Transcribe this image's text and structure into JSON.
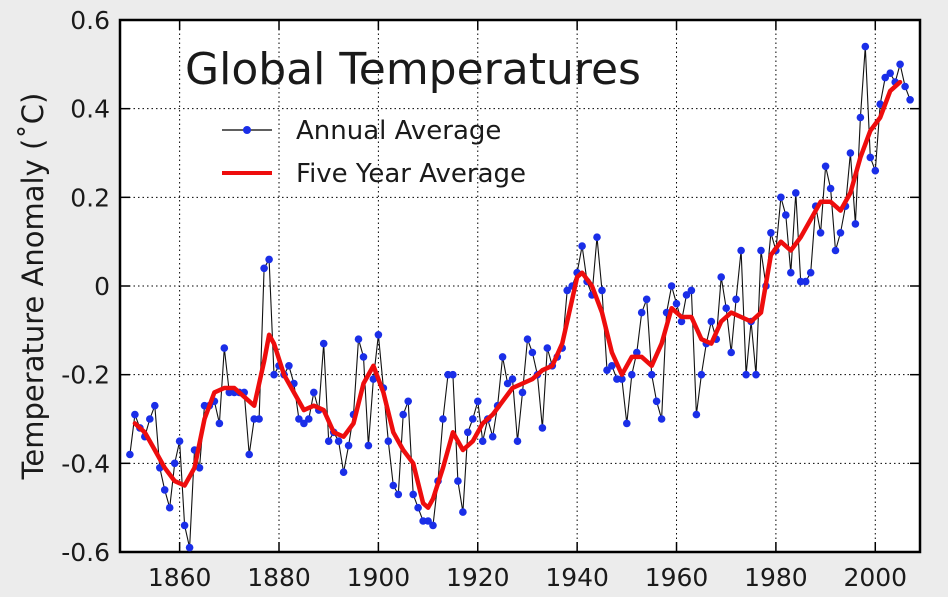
{
  "chart_data": {
    "type": "line",
    "title": "Global Temperatures",
    "xlabel": "",
    "ylabel": "Temperature Anomaly (˚C)",
    "xlim": [
      1848,
      2009
    ],
    "ylim": [
      -0.6,
      0.6
    ],
    "xticks": [
      "1860",
      "1880",
      "1900",
      "1920",
      "1940",
      "1960",
      "1980",
      "2000"
    ],
    "yticks": [
      "0.6",
      "0.4",
      "0.2",
      "0",
      "-0.2",
      "-0.4",
      "-0.6"
    ],
    "grid": true,
    "legend_position": "top-left",
    "series": [
      {
        "name": "Annual Average",
        "color": "#1a2ee8",
        "x": [
          1850,
          1851,
          1852,
          1853,
          1854,
          1855,
          1856,
          1857,
          1858,
          1859,
          1860,
          1861,
          1862,
          1863,
          1864,
          1865,
          1866,
          1867,
          1868,
          1869,
          1870,
          1871,
          1872,
          1873,
          1874,
          1875,
          1876,
          1877,
          1878,
          1879,
          1880,
          1881,
          1882,
          1883,
          1884,
          1885,
          1886,
          1887,
          1888,
          1889,
          1890,
          1891,
          1892,
          1893,
          1894,
          1895,
          1896,
          1897,
          1898,
          1899,
          1900,
          1901,
          1902,
          1903,
          1904,
          1905,
          1906,
          1907,
          1908,
          1909,
          1910,
          1911,
          1912,
          1913,
          1914,
          1915,
          1916,
          1917,
          1918,
          1919,
          1920,
          1921,
          1922,
          1923,
          1924,
          1925,
          1926,
          1927,
          1928,
          1929,
          1930,
          1931,
          1932,
          1933,
          1934,
          1935,
          1936,
          1937,
          1938,
          1939,
          1940,
          1941,
          1942,
          1943,
          1944,
          1945,
          1946,
          1947,
          1948,
          1949,
          1950,
          1951,
          1952,
          1953,
          1954,
          1955,
          1956,
          1957,
          1958,
          1959,
          1960,
          1961,
          1962,
          1963,
          1964,
          1965,
          1966,
          1967,
          1968,
          1969,
          1970,
          1971,
          1972,
          1973,
          1974,
          1975,
          1976,
          1977,
          1978,
          1979,
          1980,
          1981,
          1982,
          1983,
          1984,
          1985,
          1986,
          1987,
          1988,
          1989,
          1990,
          1991,
          1992,
          1993,
          1994,
          1995,
          1996,
          1997,
          1998,
          1999,
          2000,
          2001,
          2002,
          2003,
          2004,
          2005,
          2006,
          2007
        ],
        "values": [
          -0.38,
          -0.29,
          -0.32,
          -0.34,
          -0.3,
          -0.27,
          -0.41,
          -0.46,
          -0.5,
          -0.4,
          -0.35,
          -0.54,
          -0.59,
          -0.37,
          -0.41,
          -0.27,
          -0.27,
          -0.26,
          -0.31,
          -0.14,
          -0.24,
          -0.24,
          -0.24,
          -0.24,
          -0.38,
          -0.3,
          -0.3,
          0.04,
          0.06,
          -0.2,
          -0.18,
          -0.2,
          -0.18,
          -0.22,
          -0.3,
          -0.31,
          -0.3,
          -0.24,
          -0.28,
          -0.13,
          -0.35,
          -0.33,
          -0.35,
          -0.42,
          -0.36,
          -0.29,
          -0.12,
          -0.16,
          -0.36,
          -0.21,
          -0.11,
          -0.23,
          -0.35,
          -0.45,
          -0.47,
          -0.29,
          -0.26,
          -0.47,
          -0.5,
          -0.53,
          -0.53,
          -0.54,
          -0.44,
          -0.3,
          -0.2,
          -0.2,
          -0.44,
          -0.51,
          -0.33,
          -0.3,
          -0.26,
          -0.35,
          -0.3,
          -0.34,
          -0.27,
          -0.16,
          -0.22,
          -0.21,
          -0.35,
          -0.24,
          -0.12,
          -0.15,
          -0.2,
          -0.32,
          -0.14,
          -0.18,
          -0.16,
          -0.14,
          -0.01,
          0.0,
          0.03,
          0.09,
          0.01,
          -0.02,
          0.11,
          -0.01,
          -0.19,
          -0.18,
          -0.21,
          -0.21,
          -0.31,
          -0.2,
          -0.15,
          -0.06,
          -0.03,
          -0.2,
          -0.26,
          -0.3,
          -0.06,
          0.0,
          -0.04,
          -0.08,
          -0.02,
          -0.01,
          -0.29,
          -0.2,
          -0.13,
          -0.08,
          -0.12,
          0.02,
          -0.05,
          -0.15,
          -0.03,
          0.08,
          -0.2,
          -0.08,
          -0.2,
          0.08,
          0.0,
          0.12,
          0.08,
          0.2,
          0.16,
          0.03,
          0.21,
          0.01,
          0.01,
          0.03,
          0.18,
          0.12,
          0.27,
          0.22,
          0.08,
          0.12,
          0.18,
          0.3,
          0.14,
          0.38,
          0.54,
          0.29,
          0.26,
          0.41,
          0.47,
          0.48,
          0.46,
          0.5,
          0.45,
          0.42
        ]
      },
      {
        "name": "Five Year Average",
        "color": "#ee0d0d",
        "x": [
          1851,
          1853,
          1855,
          1857,
          1859,
          1861,
          1863,
          1865,
          1867,
          1869,
          1871,
          1873,
          1875,
          1877,
          1878,
          1879,
          1881,
          1883,
          1885,
          1887,
          1889,
          1891,
          1893,
          1895,
          1897,
          1899,
          1901,
          1903,
          1905,
          1907,
          1909,
          1910,
          1911,
          1913,
          1915,
          1917,
          1919,
          1921,
          1923,
          1925,
          1927,
          1929,
          1931,
          1933,
          1935,
          1937,
          1939,
          1940,
          1941,
          1943,
          1945,
          1947,
          1949,
          1951,
          1953,
          1955,
          1957,
          1959,
          1961,
          1963,
          1965,
          1967,
          1969,
          1971,
          1973,
          1975,
          1977,
          1979,
          1981,
          1983,
          1985,
          1987,
          1989,
          1991,
          1993,
          1995,
          1997,
          1999,
          2001,
          2003,
          2005
        ],
        "values": [
          -0.31,
          -0.33,
          -0.37,
          -0.41,
          -0.44,
          -0.45,
          -0.41,
          -0.3,
          -0.24,
          -0.23,
          -0.23,
          -0.25,
          -0.27,
          -0.17,
          -0.11,
          -0.13,
          -0.2,
          -0.24,
          -0.28,
          -0.27,
          -0.28,
          -0.33,
          -0.34,
          -0.31,
          -0.22,
          -0.18,
          -0.24,
          -0.33,
          -0.37,
          -0.4,
          -0.49,
          -0.5,
          -0.48,
          -0.41,
          -0.33,
          -0.37,
          -0.35,
          -0.31,
          -0.29,
          -0.26,
          -0.23,
          -0.22,
          -0.21,
          -0.19,
          -0.18,
          -0.13,
          -0.03,
          0.02,
          0.03,
          0.0,
          -0.06,
          -0.15,
          -0.2,
          -0.16,
          -0.16,
          -0.18,
          -0.13,
          -0.05,
          -0.07,
          -0.07,
          -0.12,
          -0.13,
          -0.08,
          -0.06,
          -0.07,
          -0.08,
          -0.06,
          0.07,
          0.1,
          0.08,
          0.11,
          0.15,
          0.19,
          0.19,
          0.17,
          0.21,
          0.29,
          0.35,
          0.38,
          0.44,
          0.46
        ]
      }
    ]
  }
}
